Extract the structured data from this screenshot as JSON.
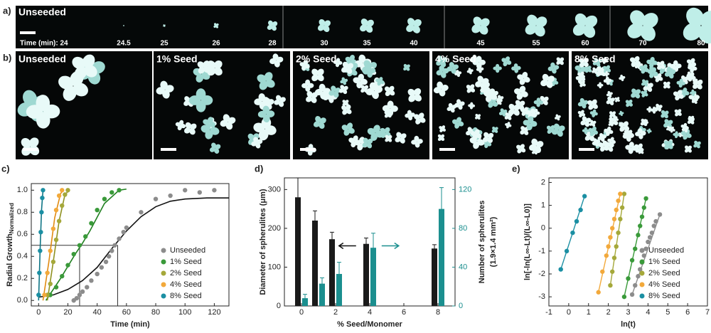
{
  "panel_a": {
    "letter": "a)",
    "label": "Unseeded",
    "times": [
      "Time (min): 24",
      "24.5",
      "25",
      "26",
      "28",
      "30",
      "35",
      "40",
      "45",
      "55",
      "60",
      "70",
      "80"
    ]
  },
  "panel_b": {
    "letter": "b)",
    "labels": [
      "Unseeded",
      "1% Seed",
      "2% Seed",
      "4% Seed",
      "8% Seed"
    ]
  },
  "chart_data": [
    {
      "type": "scatter",
      "letter": "c)",
      "ylabel": "Radial Growth",
      "ylabel_sub": "Normalized",
      "xlabel": "Time (min)",
      "xlim": [
        -5,
        130
      ],
      "xticks": [
        0,
        20,
        40,
        60,
        80,
        100,
        120
      ],
      "ylim": [
        -0.05,
        1.06
      ],
      "yticks": [
        {
          "value": 0,
          "label": "0.0"
        },
        0.2,
        0.4,
        0.6,
        0.8,
        {
          "value": 1,
          "label": "1.0"
        }
      ],
      "legend": "lower-right",
      "series": [
        {
          "name": "Unseeded",
          "color": "#8c8c8c",
          "x": [
            24,
            26,
            28,
            30,
            33,
            36,
            40,
            43,
            46,
            48,
            50,
            52,
            55,
            58,
            60,
            70,
            80,
            90,
            100,
            110,
            120
          ],
          "values": [
            0.0,
            0.02,
            0.05,
            0.08,
            0.12,
            0.18,
            0.24,
            0.3,
            0.35,
            0.4,
            0.45,
            0.5,
            0.56,
            0.62,
            0.66,
            0.8,
            0.92,
            0.95,
            1.0,
            0.98,
            1.0
          ]
        },
        {
          "name": "1% Seed",
          "color": "#3a9a3a",
          "x": [
            8,
            12,
            16,
            20,
            24,
            28,
            32,
            36,
            40,
            45,
            50,
            55
          ],
          "values": [
            0.05,
            0.12,
            0.22,
            0.32,
            0.42,
            0.5,
            0.58,
            0.7,
            0.82,
            0.92,
            0.98,
            1.0
          ]
        },
        {
          "name": "2% Seed",
          "color": "#a5a83a",
          "x": [
            6,
            8,
            10,
            12,
            14,
            16,
            18,
            20
          ],
          "values": [
            0.05,
            0.15,
            0.35,
            0.55,
            0.72,
            0.86,
            0.96,
            1.0
          ]
        },
        {
          "name": "4% Seed",
          "color": "#f2a93b",
          "x": [
            4,
            6,
            8,
            10,
            12,
            14,
            16
          ],
          "values": [
            0.05,
            0.25,
            0.45,
            0.65,
            0.82,
            0.95,
            1.0
          ]
        },
        {
          "name": "8% Seed",
          "color": "#1b8fa3",
          "x": [
            0,
            0.5,
            1,
            1.5,
            2,
            2.5,
            3
          ],
          "values": [
            0.05,
            0.25,
            0.45,
            0.62,
            0.8,
            0.93,
            1.0
          ]
        }
      ],
      "fits": [
        {
          "color": "#111111",
          "x": [
            0,
            10,
            20,
            30,
            40,
            50,
            60,
            70,
            80,
            90,
            100,
            115,
            130
          ],
          "values": [
            0.03,
            0.05,
            0.1,
            0.18,
            0.3,
            0.47,
            0.63,
            0.76,
            0.85,
            0.9,
            0.92,
            0.93,
            0.93
          ]
        },
        {
          "color": "#1f7f1f",
          "x": [
            5,
            15,
            25,
            30,
            35,
            45,
            55,
            60
          ],
          "values": [
            0.0,
            0.2,
            0.42,
            0.52,
            0.63,
            0.88,
            1.0,
            1.01
          ]
        },
        {
          "color": "#8f9120",
          "x": [
            6,
            10,
            14,
            18,
            21
          ],
          "values": [
            0.0,
            0.35,
            0.72,
            0.96,
            1.0
          ]
        },
        {
          "color": "#e08a10",
          "x": [
            3,
            7,
            11,
            15,
            17
          ],
          "values": [
            0.0,
            0.35,
            0.75,
            0.97,
            1.0
          ]
        },
        {
          "color": "#0f7585",
          "x": [
            0,
            1,
            2,
            3
          ],
          "values": [
            0.0,
            0.45,
            0.82,
            1.0
          ]
        }
      ],
      "guides": {
        "y": 0.5,
        "x": [
          28,
          54
        ]
      }
    },
    {
      "type": "bar",
      "letter": "d)",
      "ylabel": "Diameter of spherulites (μm)",
      "y2label": "Number of spherulites",
      "y2label_sub": "(1.9×1.4 mm²)",
      "xlabel": "% Seed/Monomer",
      "x": [
        0,
        1,
        2,
        4,
        8
      ],
      "xlim": [
        -1,
        9
      ],
      "xticks": [
        0,
        2,
        4,
        6,
        8
      ],
      "ylim": [
        0,
        330
      ],
      "yticks": [
        0,
        100,
        200,
        300
      ],
      "y2lim": [
        0,
        132
      ],
      "y2ticks": [
        0,
        40,
        80,
        120
      ],
      "series": [
        {
          "color": "#1a1a1a",
          "values": [
            280,
            220,
            172,
            160,
            148
          ],
          "errors": [
            50,
            25,
            18,
            15,
            10
          ]
        },
        {
          "color": "#1b8f8f",
          "axis": "y2",
          "values": [
            8,
            23,
            33,
            60,
            100
          ],
          "errors": [
            4,
            6,
            12,
            15,
            22
          ]
        }
      ]
    },
    {
      "type": "scatter",
      "letter": "e)",
      "ylabel": "ln[-ln(L∞-Lt)/(L∞-L0)]",
      "xlabel": "ln(t)",
      "xlim": [
        -1,
        7
      ],
      "xticks": [
        -1,
        0,
        1,
        2,
        3,
        4,
        5,
        6,
        7
      ],
      "ylim": [
        -3.4,
        2.2
      ],
      "yticks": [
        -3,
        -2,
        -1,
        0,
        1,
        2
      ],
      "legend": "lower-right",
      "series": [
        {
          "name": "Unseeded",
          "color": "#8c8c8c",
          "x": [
            3.2,
            3.35,
            3.5,
            3.6,
            3.7,
            3.8,
            3.9,
            4.0,
            4.1,
            4.2,
            4.3,
            4.4,
            4.6
          ],
          "values": [
            -2.9,
            -2.5,
            -2.1,
            -1.8,
            -1.5,
            -1.2,
            -0.9,
            -0.6,
            -0.4,
            -0.2,
            0.1,
            0.3,
            0.6
          ]
        },
        {
          "name": "1% Seed",
          "color": "#3a9a3a",
          "x": [
            2.8,
            3.0,
            3.2,
            3.35,
            3.5,
            3.6,
            3.7,
            3.8,
            3.9
          ],
          "values": [
            -3.0,
            -2.2,
            -1.4,
            -0.9,
            -0.3,
            0.1,
            0.5,
            0.9,
            1.3
          ]
        },
        {
          "name": "2% Seed",
          "color": "#a5a83a",
          "x": [
            2.1,
            2.2,
            2.3,
            2.4,
            2.5,
            2.6,
            2.7,
            2.8
          ],
          "values": [
            -2.5,
            -1.9,
            -1.3,
            -0.8,
            -0.2,
            0.4,
            0.9,
            1.5
          ]
        },
        {
          "name": "4% Seed",
          "color": "#f2a93b",
          "x": [
            1.5,
            1.7,
            1.9,
            2.0,
            2.1,
            2.2,
            2.3,
            2.4,
            2.5,
            2.6
          ],
          "values": [
            -2.8,
            -1.9,
            -1.2,
            -0.8,
            -0.4,
            0.0,
            0.4,
            0.8,
            1.2,
            1.5
          ]
        },
        {
          "name": "8% Seed",
          "color": "#1b8fa3",
          "x": [
            -0.4,
            -0.1,
            0.2,
            0.4,
            0.6,
            0.8
          ],
          "values": [
            -1.8,
            -1.0,
            -0.2,
            0.3,
            0.8,
            1.4
          ]
        }
      ]
    }
  ]
}
